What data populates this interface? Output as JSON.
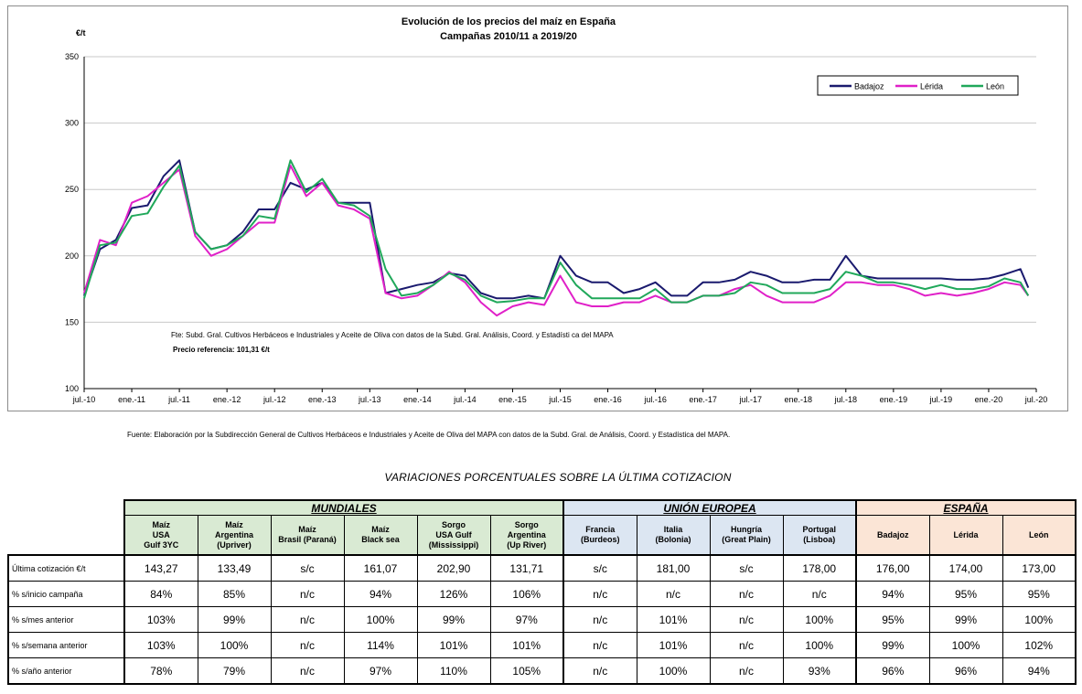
{
  "chart_data": {
    "type": "line",
    "title": "Evolución de los precios del maíz en España",
    "subtitle": "Campañas 2010/11 a 2019/20",
    "ylabel": "€/t",
    "ylim": [
      100,
      350
    ],
    "yticks": [
      "100",
      "150",
      "200",
      "250",
      "300",
      "350"
    ],
    "xlim": [
      "2010-07",
      "2020-07"
    ],
    "xtick_labels": [
      "jul.-10",
      "ene.-11",
      "jul.-11",
      "ene.-12",
      "jul.-12",
      "ene.-13",
      "jul.-13",
      "ene.-14",
      "jul.-14",
      "ene.-15",
      "jul.-15",
      "ene.-16",
      "jul.-16",
      "ene.-17",
      "jul.-17",
      "ene.-18",
      "jul.-18",
      "ene.-19",
      "jul.-19",
      "ene.-20",
      "jul.-20"
    ],
    "grid": "horizontal",
    "legend_position": "top-right",
    "x": [
      "2010-07",
      "2010-09",
      "2010-11",
      "2011-01",
      "2011-03",
      "2011-05",
      "2011-07",
      "2011-09",
      "2011-11",
      "2012-01",
      "2012-03",
      "2012-05",
      "2012-07",
      "2012-09",
      "2012-11",
      "2013-01",
      "2013-03",
      "2013-05",
      "2013-07",
      "2013-09",
      "2013-11",
      "2014-01",
      "2014-03",
      "2014-05",
      "2014-07",
      "2014-09",
      "2014-11",
      "2015-01",
      "2015-03",
      "2015-05",
      "2015-07",
      "2015-09",
      "2015-11",
      "2016-01",
      "2016-03",
      "2016-05",
      "2016-07",
      "2016-09",
      "2016-11",
      "2017-01",
      "2017-03",
      "2017-05",
      "2017-07",
      "2017-09",
      "2017-11",
      "2018-01",
      "2018-03",
      "2018-05",
      "2018-07",
      "2018-09",
      "2018-11",
      "2019-01",
      "2019-03",
      "2019-05",
      "2019-07",
      "2019-09",
      "2019-11",
      "2020-01",
      "2020-03",
      "2020-05",
      "2020-06"
    ],
    "series": [
      {
        "name": "Badajoz",
        "color": "#1a1a6e",
        "values": [
          170,
          205,
          212,
          236,
          238,
          260,
          272,
          218,
          205,
          208,
          218,
          235,
          235,
          255,
          250,
          255,
          240,
          240,
          240,
          172,
          175,
          178,
          180,
          187,
          185,
          172,
          168,
          168,
          170,
          168,
          200,
          185,
          180,
          180,
          172,
          175,
          180,
          170,
          170,
          180,
          180,
          182,
          188,
          185,
          180,
          180,
          182,
          182,
          200,
          185,
          183,
          183,
          183,
          183,
          183,
          182,
          182,
          183,
          186,
          190,
          176
        ]
      },
      {
        "name": "Lérida",
        "color": "#e020c8",
        "values": [
          172,
          212,
          208,
          240,
          245,
          255,
          265,
          215,
          200,
          205,
          215,
          225,
          225,
          268,
          245,
          255,
          238,
          235,
          228,
          172,
          168,
          170,
          178,
          188,
          180,
          165,
          155,
          162,
          165,
          163,
          185,
          165,
          162,
          162,
          165,
          165,
          170,
          165,
          165,
          170,
          170,
          175,
          178,
          170,
          165,
          165,
          165,
          170,
          180,
          180,
          178,
          178,
          175,
          170,
          172,
          170,
          172,
          175,
          180,
          178,
          170
        ]
      },
      {
        "name": "León",
        "color": "#20a85a",
        "values": [
          168,
          208,
          210,
          230,
          232,
          252,
          268,
          218,
          205,
          208,
          215,
          230,
          228,
          272,
          248,
          258,
          240,
          238,
          230,
          190,
          170,
          172,
          178,
          187,
          182,
          170,
          165,
          166,
          168,
          168,
          195,
          178,
          168,
          168,
          168,
          168,
          175,
          165,
          165,
          170,
          170,
          172,
          180,
          178,
          172,
          172,
          172,
          175,
          188,
          185,
          180,
          180,
          178,
          175,
          178,
          175,
          175,
          177,
          183,
          180,
          170
        ]
      }
    ]
  },
  "chart_notes": {
    "fuente_interna": "Fte: Subd. Gral. Cultivos Herbáceos e Industriales y Aceite de Oliva con datos de la Subd. Gral. Análisis, Coord. y Estadísti ca del MAPA",
    "precio_referencia": "Precio referencia: 101,31 €/t"
  },
  "source_note": "Fuente: Elaboración por la Subdirección General de Cultivos Herbáceos e Industriales y Aceite de Oliva del MAPA con datos de la Subd. Gral. de Análisis, Coord. y Estadística del MAPA.",
  "table": {
    "title": "VARIACIONES PORCENTUALES SOBRE LA ÚLTIMA COTIZACION",
    "groups": [
      {
        "label": "MUNDIALES",
        "color": "#d9ead3"
      },
      {
        "label": "UNIÓN EUROPEA",
        "color": "#dce6f2"
      },
      {
        "label": "ESPAÑA",
        "color": "#fbe5d6"
      }
    ],
    "columns": [
      "Maíz\nUSA\nGulf 3YC",
      "Maíz\nArgentina\n(Upriver)",
      "Maíz\nBrasil (Paraná)",
      "Maíz\nBlack sea",
      "Sorgo\nUSA Gulf\n(Mississippi)",
      "Sorgo\nArgentina\n(Up River)",
      "Francia\n(Burdeos)",
      "Italia\n(Bolonia)",
      "Hungría\n(Great Plain)",
      "Portugal\n(Lisboa)",
      "Badajoz",
      "Lérida",
      "León"
    ],
    "rows": [
      {
        "label": "Última cotización €/t",
        "values": [
          "143,27",
          "133,49",
          "s/c",
          "161,07",
          "202,90",
          "131,71",
          "s/c",
          "181,00",
          "s/c",
          "178,00",
          "176,00",
          "174,00",
          "173,00"
        ]
      },
      {
        "label": "% s/inicio campaña",
        "values": [
          "84%",
          "85%",
          "n/c",
          "94%",
          "126%",
          "106%",
          "n/c",
          "n/c",
          "n/c",
          "n/c",
          "94%",
          "95%",
          "95%"
        ]
      },
      {
        "label": "% s/mes anterior",
        "values": [
          "103%",
          "99%",
          "n/c",
          "100%",
          "99%",
          "97%",
          "n/c",
          "101%",
          "n/c",
          "100%",
          "95%",
          "99%",
          "100%"
        ]
      },
      {
        "label": "% s/semana anterior",
        "values": [
          "103%",
          "100%",
          "n/c",
          "114%",
          "101%",
          "101%",
          "n/c",
          "101%",
          "n/c",
          "100%",
          "99%",
          "100%",
          "102%"
        ]
      },
      {
        "label": "% s/año anterior",
        "values": [
          "78%",
          "79%",
          "n/c",
          "97%",
          "110%",
          "105%",
          "n/c",
          "100%",
          "n/c",
          "93%",
          "96%",
          "96%",
          "94%"
        ]
      }
    ]
  }
}
